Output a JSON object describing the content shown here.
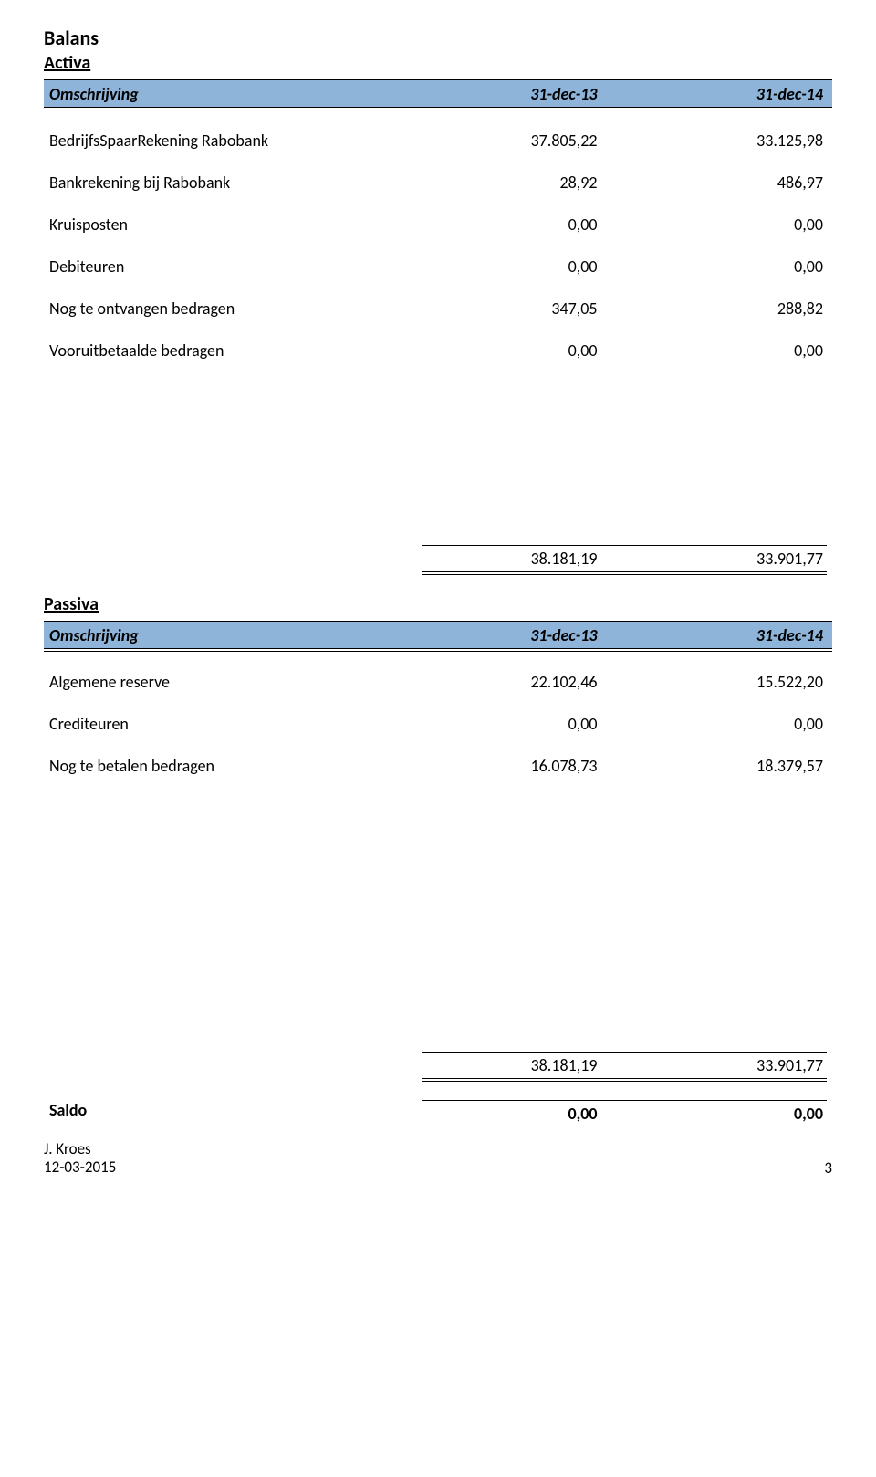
{
  "title": "Balans",
  "colors": {
    "header_bg": "#8eb4d9",
    "border": "#000000",
    "text": "#000000",
    "bg": "#ffffff"
  },
  "activa": {
    "section_label": "Activa",
    "header": {
      "desc": "Omschrijving",
      "col1": "31-dec-13",
      "col2": "31-dec-14"
    },
    "rows": [
      {
        "desc": "BedrijfsSpaarRekening Rabobank",
        "v1": "37.805,22",
        "v2": "33.125,98"
      },
      {
        "desc": "Bankrekening bij Rabobank",
        "v1": "28,92",
        "v2": "486,97"
      },
      {
        "desc": "Kruisposten",
        "v1": "0,00",
        "v2": "0,00"
      },
      {
        "desc": "Debiteuren",
        "v1": "0,00",
        "v2": "0,00"
      },
      {
        "desc": "Nog te ontvangen bedragen",
        "v1": "347,05",
        "v2": "288,82"
      },
      {
        "desc": "Vooruitbetaalde bedragen",
        "v1": "0,00",
        "v2": "0,00"
      }
    ],
    "total": {
      "v1": "38.181,19",
      "v2": "33.901,77"
    }
  },
  "passiva": {
    "section_label": "Passiva",
    "header": {
      "desc": "Omschrijving",
      "col1": "31-dec-13",
      "col2": "31-dec-14"
    },
    "rows": [
      {
        "desc": "Algemene reserve",
        "v1": "22.102,46",
        "v2": "15.522,20"
      },
      {
        "desc": "Crediteuren",
        "v1": "0,00",
        "v2": "0,00"
      },
      {
        "desc": "Nog te betalen bedragen",
        "v1": "16.078,73",
        "v2": "18.379,57"
      }
    ],
    "total": {
      "v1": "38.181,19",
      "v2": "33.901,77"
    }
  },
  "saldo": {
    "label": "Saldo",
    "v1": "0,00",
    "v2": "0,00"
  },
  "footer": {
    "author": "J. Kroes",
    "date": "12-03-2015",
    "page": "3"
  }
}
